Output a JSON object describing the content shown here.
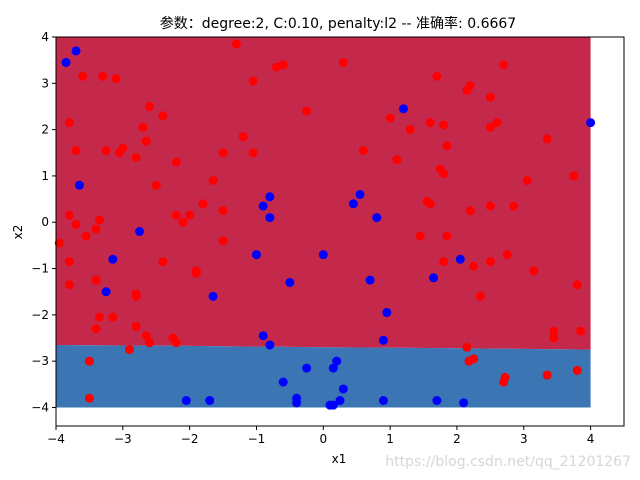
{
  "chart_data": {
    "type": "scatter",
    "title": "参数：degree:2, C:0.10, penalty:l2 -- 准确率: 0.6667",
    "xlabel": "x1",
    "ylabel": "x2",
    "xlim": [
      -4,
      4.5
    ],
    "ylim": [
      -4.4,
      4
    ],
    "xticks": [
      -4,
      -3,
      -2,
      -1,
      0,
      1,
      2,
      3,
      4
    ],
    "yticks": [
      -4,
      -3,
      -2,
      -1,
      0,
      1,
      2,
      3,
      4
    ],
    "grid": false,
    "regions": {
      "extent_x": [
        -4,
        4
      ],
      "extent_y": [
        -4,
        4
      ],
      "boundary": [
        [
          -4,
          -2.65
        ],
        [
          -2,
          -2.67
        ],
        [
          0,
          -2.7
        ],
        [
          2,
          -2.72
        ],
        [
          4,
          -2.75
        ]
      ],
      "upper_color": "#c4294b",
      "lower_color": "#3b75b4",
      "upper_class": "red",
      "lower_class": "blue"
    },
    "series": [
      {
        "color": "#ff0000",
        "points": [
          [
            -3.8,
            2.15
          ],
          [
            -3.6,
            3.15
          ],
          [
            -3.3,
            3.15
          ],
          [
            -3.1,
            3.1
          ],
          [
            -3.7,
            1.55
          ],
          [
            -3.25,
            1.55
          ],
          [
            -3.05,
            1.5
          ],
          [
            -3.0,
            1.6
          ],
          [
            -2.8,
            1.4
          ],
          [
            -2.7,
            2.05
          ],
          [
            -2.65,
            1.75
          ],
          [
            -2.6,
            2.5
          ],
          [
            -2.4,
            2.3
          ],
          [
            -2.5,
            0.8
          ],
          [
            -2.2,
            1.3
          ],
          [
            -2.2,
            0.15
          ],
          [
            -2.1,
            0.0
          ],
          [
            -2.0,
            0.15
          ],
          [
            -1.8,
            0.4
          ],
          [
            -1.65,
            0.9
          ],
          [
            -1.5,
            1.5
          ],
          [
            -1.5,
            0.25
          ],
          [
            -1.5,
            -0.4
          ],
          [
            -1.3,
            3.85
          ],
          [
            -1.2,
            1.85
          ],
          [
            -1.05,
            3.05
          ],
          [
            -1.05,
            1.5
          ],
          [
            -0.7,
            3.35
          ],
          [
            -0.6,
            3.4
          ],
          [
            -0.25,
            2.4
          ],
          [
            0.3,
            3.45
          ],
          [
            0.6,
            1.55
          ],
          [
            1.0,
            2.25
          ],
          [
            1.1,
            1.35
          ],
          [
            1.3,
            2.0
          ],
          [
            1.6,
            2.15
          ],
          [
            1.7,
            3.15
          ],
          [
            1.75,
            1.15
          ],
          [
            1.8,
            1.05
          ],
          [
            1.8,
            2.1
          ],
          [
            1.85,
            1.65
          ],
          [
            2.15,
            2.85
          ],
          [
            2.2,
            2.95
          ],
          [
            2.5,
            2.7
          ],
          [
            2.5,
            2.05
          ],
          [
            2.6,
            2.15
          ],
          [
            2.7,
            3.4
          ],
          [
            2.85,
            0.35
          ],
          [
            3.05,
            0.9
          ],
          [
            3.35,
            1.8
          ],
          [
            3.75,
            1.0
          ],
          [
            3.8,
            -1.35
          ],
          [
            3.85,
            -2.35
          ],
          [
            3.45,
            -2.35
          ],
          [
            3.45,
            -2.5
          ],
          [
            3.35,
            -3.3
          ],
          [
            3.8,
            -3.2
          ],
          [
            3.15,
            -1.05
          ],
          [
            2.75,
            -0.7
          ],
          [
            2.7,
            -3.45
          ],
          [
            2.72,
            -3.35
          ],
          [
            2.25,
            -0.95
          ],
          [
            2.35,
            -1.6
          ],
          [
            2.5,
            -0.85
          ],
          [
            2.5,
            0.35
          ],
          [
            2.2,
            0.25
          ],
          [
            2.15,
            -2.7
          ],
          [
            2.18,
            -3.0
          ],
          [
            2.25,
            -2.95
          ],
          [
            1.8,
            -0.85
          ],
          [
            1.85,
            -0.3
          ],
          [
            1.6,
            0.4
          ],
          [
            1.55,
            0.45
          ],
          [
            1.45,
            -0.3
          ],
          [
            -3.95,
            -0.45
          ],
          [
            -3.8,
            -0.85
          ],
          [
            -3.8,
            0.15
          ],
          [
            -3.7,
            -0.05
          ],
          [
            -3.55,
            -0.3
          ],
          [
            -3.4,
            -0.15
          ],
          [
            -3.4,
            -1.25
          ],
          [
            -3.35,
            0.05
          ],
          [
            -3.4,
            -2.3
          ],
          [
            -3.35,
            -2.05
          ],
          [
            -3.15,
            -2.05
          ],
          [
            -3.5,
            -3.0
          ],
          [
            -3.5,
            -3.8
          ],
          [
            -2.9,
            -2.75
          ],
          [
            -2.8,
            -1.6
          ],
          [
            -2.8,
            -1.55
          ],
          [
            -2.8,
            -2.25
          ],
          [
            -2.65,
            -2.45
          ],
          [
            -2.6,
            -2.6
          ],
          [
            -2.4,
            -0.85
          ],
          [
            -2.25,
            -2.5
          ],
          [
            -2.2,
            -2.6
          ],
          [
            -1.9,
            -1.05
          ],
          [
            -1.9,
            -1.1
          ],
          [
            -3.8,
            -1.35
          ]
        ]
      },
      {
        "color": "#0000ff",
        "points": [
          [
            -3.7,
            3.7
          ],
          [
            -3.85,
            3.45
          ],
          [
            -3.65,
            0.8
          ],
          [
            -3.15,
            -0.8
          ],
          [
            -3.25,
            -1.5
          ],
          [
            -2.75,
            -0.2
          ],
          [
            -1.65,
            -1.6
          ],
          [
            -2.05,
            -3.85
          ],
          [
            -1.7,
            -3.85
          ],
          [
            -1.0,
            -0.7
          ],
          [
            -0.9,
            0.35
          ],
          [
            -0.8,
            0.55
          ],
          [
            -0.8,
            0.1
          ],
          [
            -0.9,
            -2.45
          ],
          [
            -0.8,
            -2.65
          ],
          [
            -0.6,
            -3.45
          ],
          [
            -0.5,
            -1.3
          ],
          [
            -0.4,
            -3.8
          ],
          [
            -0.4,
            -3.9
          ],
          [
            -0.25,
            -3.15
          ],
          [
            0.0,
            -0.7
          ],
          [
            0.1,
            -3.95
          ],
          [
            0.15,
            -3.95
          ],
          [
            0.15,
            -3.15
          ],
          [
            0.2,
            -3.0
          ],
          [
            0.25,
            -3.85
          ],
          [
            0.3,
            -3.6
          ],
          [
            0.45,
            0.4
          ],
          [
            0.55,
            0.6
          ],
          [
            0.7,
            -1.25
          ],
          [
            0.8,
            0.1
          ],
          [
            0.9,
            -2.55
          ],
          [
            0.95,
            -1.95
          ],
          [
            0.9,
            -3.85
          ],
          [
            1.2,
            2.45
          ],
          [
            1.65,
            -1.2
          ],
          [
            1.7,
            -3.85
          ],
          [
            2.05,
            -0.8
          ],
          [
            2.1,
            -3.9
          ],
          [
            4.0,
            2.15
          ]
        ]
      }
    ]
  },
  "watermark": "https://blog.csdn.net/qq_21201267"
}
